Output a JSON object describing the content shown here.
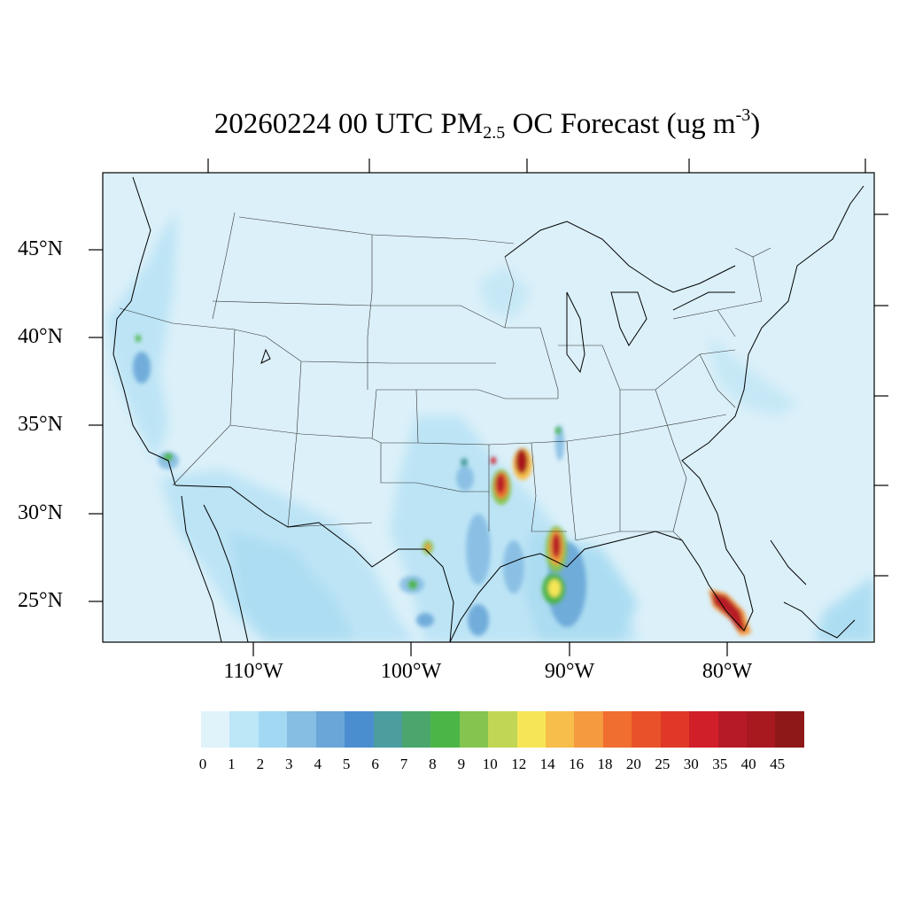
{
  "title": {
    "date": "20260224",
    "text_a": " 00 UTC PM",
    "sub": "2.5",
    "text_b": " OC Forecast (ug m",
    "sup": "-3",
    "text_c": ")"
  },
  "lat_labels": [
    "45°N",
    "40°N",
    "35°N",
    "30°N",
    "25°N"
  ],
  "lon_labels": [
    "110°W",
    "100°W",
    "90°W",
    "80°W"
  ],
  "colorbar": {
    "levels": [
      "0",
      "1",
      "2",
      "3",
      "4",
      "5",
      "6",
      "7",
      "8",
      "9",
      "10",
      "12",
      "14",
      "16",
      "18",
      "20",
      "25",
      "30",
      "35",
      "40",
      "45"
    ],
    "colors": [
      "#e0f3fb",
      "#bde6f6",
      "#a2d8f2",
      "#86bde3",
      "#6aa7d8",
      "#4b8ed0",
      "#4b9d9e",
      "#4aa66c",
      "#4bb548",
      "#86c450",
      "#c1d654",
      "#f6e657",
      "#f7be4b",
      "#f59a3e",
      "#f06e2f",
      "#e9512b",
      "#df3828",
      "#d11f2a",
      "#b71a27",
      "#a8181f",
      "#8e1718"
    ]
  },
  "map": {
    "region": "Continental United States",
    "background_color": "#dbf0f9",
    "hotspots": [
      {
        "name": "louisiana-arkansas-border",
        "level": "45"
      },
      {
        "name": "east-texas",
        "level": "45"
      },
      {
        "name": "southeast-louisiana",
        "level": "45"
      },
      {
        "name": "gulf-plume",
        "level": "14"
      },
      {
        "name": "south-florida",
        "level": "45"
      },
      {
        "name": "south-texas",
        "level": "10"
      },
      {
        "name": "southern-california",
        "level": "9"
      }
    ]
  }
}
